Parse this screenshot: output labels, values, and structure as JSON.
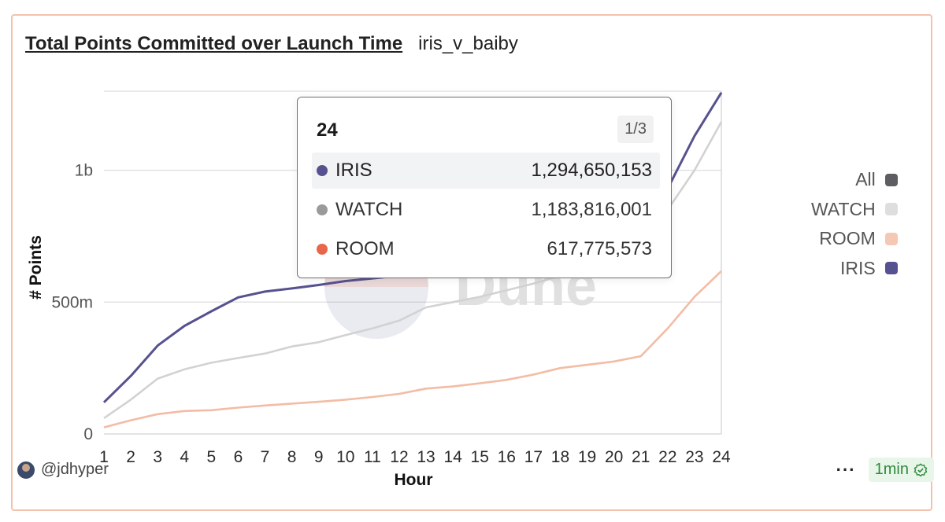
{
  "header": {
    "title": "Total Points Committed over Launch Time",
    "subtitle": "iris_v_baiby"
  },
  "footer": {
    "user": "@jdhyper",
    "more": "···",
    "refresh": "1min"
  },
  "watermark": "Dune",
  "legend": [
    {
      "label": "All",
      "color": "#5e5e62"
    },
    {
      "label": "WATCH",
      "color": "#dedede"
    },
    {
      "label": "ROOM",
      "color": "#f5c8b5"
    },
    {
      "label": "IRIS",
      "color": "#56528f"
    }
  ],
  "tooltip": {
    "header": "24",
    "page": "1/3",
    "rows": [
      {
        "name": "IRIS",
        "value": "1,294,650,153",
        "color": "#56528f"
      },
      {
        "name": "WATCH",
        "value": "1,183,816,001",
        "color": "#9a9a9a"
      },
      {
        "name": "ROOM",
        "value": "617,775,573",
        "color": "#e8674a"
      }
    ]
  },
  "chart_data": {
    "type": "line",
    "xlabel": "Hour",
    "ylabel": "# Points",
    "x": [
      1,
      2,
      3,
      4,
      5,
      6,
      7,
      8,
      9,
      10,
      11,
      12,
      13,
      14,
      15,
      16,
      17,
      18,
      19,
      20,
      21,
      22,
      23,
      24
    ],
    "ylim": [
      0,
      1300000000
    ],
    "yticks": [
      {
        "value": 0,
        "label": "0"
      },
      {
        "value": 500000000,
        "label": "500m"
      },
      {
        "value": 1000000000,
        "label": "1b"
      }
    ],
    "grid": true,
    "legend_position": "right",
    "series": [
      {
        "name": "IRIS",
        "color": "#56528f",
        "values": [
          120000000,
          220000000,
          335000000,
          410000000,
          465000000,
          518000000,
          540000000,
          552000000,
          565000000,
          580000000,
          590000000,
          600000000,
          615000000,
          630000000,
          645000000,
          660000000,
          680000000,
          700000000,
          720000000,
          760000000,
          820000000,
          930000000,
          1130000000,
          1294650153
        ]
      },
      {
        "name": "WATCH",
        "color": "#d2d2d2",
        "values": [
          60000000,
          130000000,
          210000000,
          245000000,
          270000000,
          288000000,
          305000000,
          332000000,
          348000000,
          375000000,
          400000000,
          430000000,
          480000000,
          500000000,
          520000000,
          545000000,
          570000000,
          600000000,
          640000000,
          680000000,
          760000000,
          850000000,
          1000000000,
          1183816001
        ]
      },
      {
        "name": "ROOM",
        "color": "#f3bca5",
        "values": [
          25000000,
          52000000,
          75000000,
          87000000,
          90000000,
          100000000,
          108000000,
          115000000,
          122000000,
          130000000,
          140000000,
          152000000,
          172000000,
          180000000,
          192000000,
          205000000,
          225000000,
          250000000,
          262000000,
          275000000,
          295000000,
          400000000,
          520000000,
          617775573
        ]
      }
    ]
  }
}
